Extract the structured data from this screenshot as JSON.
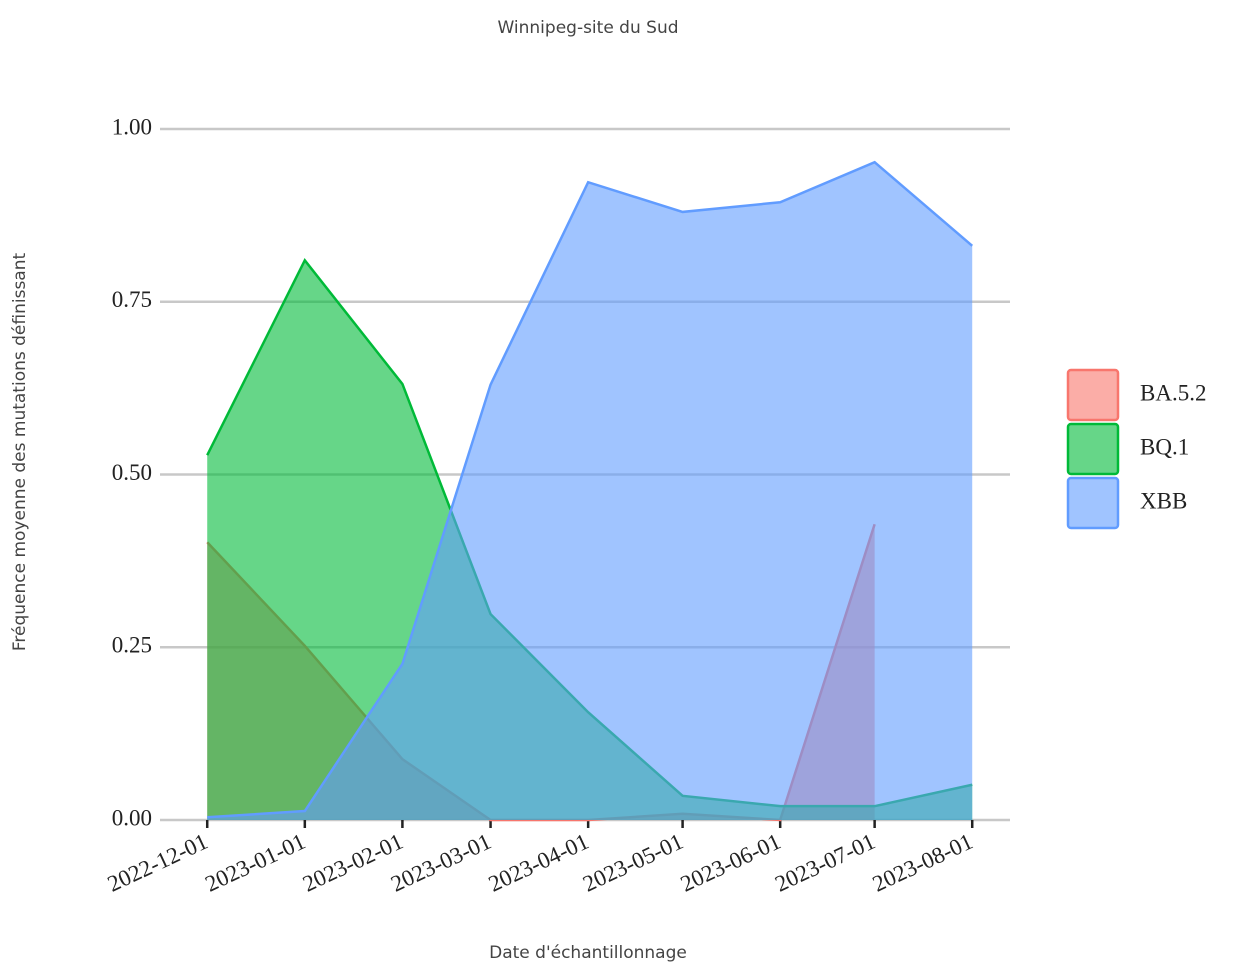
{
  "chart_data": {
    "type": "area",
    "title": "Winnipeg-site du Sud",
    "xlabel": "Date d'échantillonnage",
    "ylabel": "Fréquence moyenne des mutations définissant",
    "x": [
      "2022-12-01",
      "2023-01-01",
      "2023-02-01",
      "2023-03-01",
      "2023-04-01",
      "2023-05-01",
      "2023-06-01",
      "2023-07-01",
      "2023-08-01"
    ],
    "series": [
      {
        "name": "BA.5.2",
        "color": "#f8766d",
        "values": [
          0.402,
          0.252,
          0.088,
          0,
          0,
          0.009,
          0,
          0.428,
          null
        ]
      },
      {
        "name": "BQ.1",
        "color": "#00ba38",
        "values": [
          0.528,
          0.81,
          0.631,
          0.298,
          0.156,
          0.035,
          0.02,
          0.02,
          0.051
        ]
      },
      {
        "name": "XBB",
        "color": "#619cff",
        "values": [
          0.004,
          0.013,
          0.226,
          0.63,
          0.923,
          0.88,
          0.894,
          0.952,
          0.831
        ]
      }
    ],
    "xlim": [
      "2022-11-16",
      "2023-08-13"
    ],
    "xticks": [
      "2022-12-01",
      "2023-01-01",
      "2023-02-01",
      "2023-03-01",
      "2023-04-01",
      "2023-05-01",
      "2023-06-01",
      "2023-07-01",
      "2023-08-01"
    ],
    "ylim": [
      0,
      1
    ],
    "yticks": [
      {
        "value": 0,
        "label": "0.00"
      },
      {
        "value": 0.25,
        "label": "0.25"
      },
      {
        "value": 0.5,
        "label": "0.50"
      },
      {
        "value": 0.75,
        "label": "0.75"
      },
      {
        "value": 1,
        "label": "1.00"
      }
    ],
    "grid": true,
    "legend": "right"
  }
}
